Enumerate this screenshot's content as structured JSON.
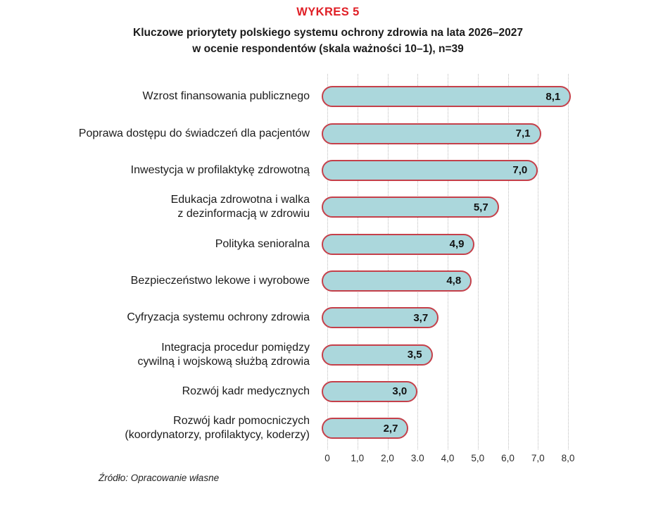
{
  "figure": {
    "kicker": "WYKRES 5",
    "title_line1": "Kluczowe priorytety polskiego systemu ochrony zdrowia na lata 2026–2027",
    "title_line2": "w ocenie respondentów (skala ważności 10–1), n=39",
    "source": "Źródło: Opracowanie własne"
  },
  "chart_data": {
    "type": "bar",
    "orientation": "horizontal",
    "title": "Kluczowe priorytety polskiego systemu ochrony zdrowia na lata 2026–2027 w ocenie respondentów (skala ważności 10–1), n=39",
    "xlabel": "",
    "ylabel": "",
    "xlim": [
      0,
      8
    ],
    "grid": "vertical-dotted",
    "legend": "none",
    "categories": [
      "Wzrost finansowania publicznego",
      "Poprawa dostępu do świadczeń dla pacjentów",
      "Inwestycja w profilaktykę zdrowotną",
      "Edukacja zdrowotna i walka z dezinformacją w zdrowiu",
      "Polityka senioralna",
      "Bezpieczeństwo lekowe i wyrobowe",
      "Cyfryzacja systemu ochrony zdrowia",
      "Integracja procedur pomiędzy cywilną i wojskową służbą zdrowia",
      "Rozwój kadr medycznych",
      "Rozwój kadr pomocniczych (koordynatorzy, profilaktycy, koderzy)"
    ],
    "values": [
      8.1,
      7.1,
      7.0,
      5.7,
      4.9,
      4.8,
      3.7,
      3.5,
      3.0,
      2.7
    ],
    "bars": [
      {
        "label_lines": [
          "Wzrost finansowania publicznego"
        ],
        "value": 8.1,
        "display": "8,1"
      },
      {
        "label_lines": [
          "Poprawa dostępu do świadczeń dla pacjentów"
        ],
        "value": 7.1,
        "display": "7,1"
      },
      {
        "label_lines": [
          "Inwestycja w profilaktykę zdrowotną"
        ],
        "value": 7.0,
        "display": "7,0"
      },
      {
        "label_lines": [
          "Edukacja zdrowotna i walka",
          "z dezinformacją w zdrowiu"
        ],
        "value": 5.7,
        "display": "5,7"
      },
      {
        "label_lines": [
          "Polityka senioralna"
        ],
        "value": 4.9,
        "display": "4,9"
      },
      {
        "label_lines": [
          "Bezpieczeństwo lekowe i wyrobowe"
        ],
        "value": 4.8,
        "display": "4,8"
      },
      {
        "label_lines": [
          "Cyfryzacja systemu ochrony zdrowia"
        ],
        "value": 3.7,
        "display": "3,7"
      },
      {
        "label_lines": [
          "Integracja procedur pomiędzy",
          "cywilną i wojskową służbą zdrowia"
        ],
        "value": 3.5,
        "display": "3,5"
      },
      {
        "label_lines": [
          "Rozwój kadr medycznych"
        ],
        "value": 3.0,
        "display": "3,0"
      },
      {
        "label_lines": [
          "Rozwój kadr pomocniczych",
          "(koordynatorzy, profilaktycy, koderzy)"
        ],
        "value": 2.7,
        "display": "2,7"
      }
    ],
    "x_ticks": [
      {
        "value": 0,
        "label": "0"
      },
      {
        "value": 1,
        "label": "1,0"
      },
      {
        "value": 2,
        "label": "2,0"
      },
      {
        "value": 3,
        "label": "3.0"
      },
      {
        "value": 4,
        "label": "4,0"
      },
      {
        "value": 5,
        "label": "5,0"
      },
      {
        "value": 6,
        "label": "6,0"
      },
      {
        "value": 7,
        "label": "7,0"
      },
      {
        "value": 8,
        "label": "8,0"
      }
    ],
    "colors": {
      "kicker_red": "#e01f26",
      "bar_fill": "#abd7dc",
      "bar_border": "#c5404a",
      "gridline": "#bdbdbd",
      "text": "#1a1a1a"
    }
  }
}
